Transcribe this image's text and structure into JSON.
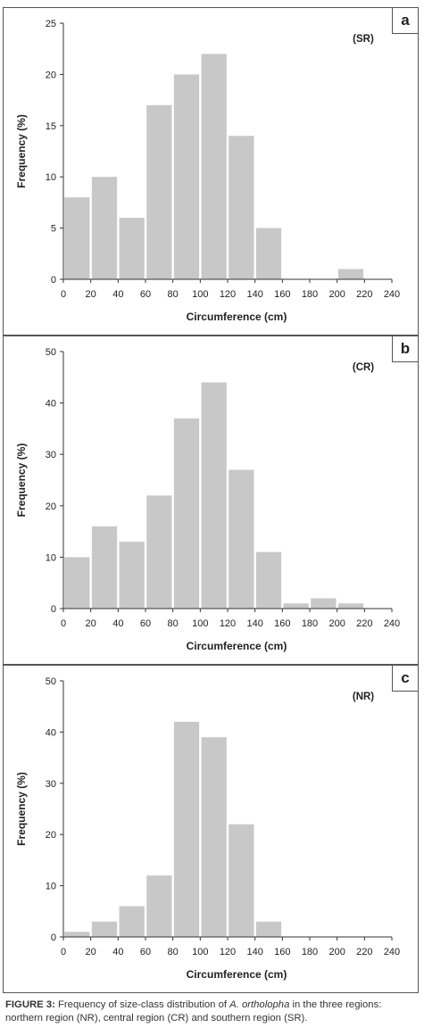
{
  "panels": [
    {
      "letter": "a",
      "chart_data": {
        "type": "bar",
        "region_label": "(SR)",
        "xlabel": "Circumference (cm)",
        "ylabel": "Frequency (%)",
        "xlim": [
          0,
          240
        ],
        "ylim": [
          0,
          25
        ],
        "xticks": [
          0,
          20,
          40,
          60,
          80,
          100,
          120,
          140,
          160,
          180,
          200,
          220,
          240
        ],
        "yticks": [
          0,
          5,
          10,
          15,
          20,
          25
        ],
        "bins": [
          [
            0,
            20
          ],
          [
            20,
            40
          ],
          [
            40,
            60
          ],
          [
            60,
            80
          ],
          [
            80,
            100
          ],
          [
            100,
            120
          ],
          [
            120,
            140
          ],
          [
            140,
            160
          ],
          [
            160,
            180
          ],
          [
            180,
            200
          ],
          [
            200,
            220
          ]
        ],
        "values": [
          8,
          10,
          6,
          17,
          20,
          22,
          14,
          5,
          0,
          0,
          1
        ],
        "bar_color": "#c8c8c8"
      }
    },
    {
      "letter": "b",
      "chart_data": {
        "type": "bar",
        "region_label": "(CR)",
        "xlabel": "Circumference (cm)",
        "ylabel": "Frequency (%)",
        "xlim": [
          0,
          240
        ],
        "ylim": [
          0,
          50
        ],
        "xticks": [
          0,
          20,
          40,
          60,
          80,
          100,
          120,
          140,
          160,
          180,
          200,
          220,
          240
        ],
        "yticks": [
          0,
          10,
          20,
          30,
          40,
          50
        ],
        "bins": [
          [
            0,
            20
          ],
          [
            20,
            40
          ],
          [
            40,
            60
          ],
          [
            60,
            80
          ],
          [
            80,
            100
          ],
          [
            100,
            120
          ],
          [
            120,
            140
          ],
          [
            140,
            160
          ],
          [
            160,
            180
          ],
          [
            180,
            200
          ],
          [
            200,
            220
          ]
        ],
        "values": [
          10,
          16,
          13,
          22,
          37,
          44,
          27,
          11,
          1,
          2,
          1
        ],
        "bar_color": "#c8c8c8"
      }
    },
    {
      "letter": "c",
      "chart_data": {
        "type": "bar",
        "region_label": "(NR)",
        "xlabel": "Circumference (cm)",
        "ylabel": "Frequency (%)",
        "xlim": [
          0,
          240
        ],
        "ylim": [
          0,
          50
        ],
        "xticks": [
          0,
          20,
          40,
          60,
          80,
          100,
          120,
          140,
          160,
          180,
          200,
          220,
          240
        ],
        "yticks": [
          0,
          10,
          20,
          30,
          40,
          50
        ],
        "bins": [
          [
            0,
            20
          ],
          [
            20,
            40
          ],
          [
            40,
            60
          ],
          [
            60,
            80
          ],
          [
            80,
            100
          ],
          [
            100,
            120
          ],
          [
            120,
            140
          ],
          [
            140,
            160
          ],
          [
            160,
            180
          ],
          [
            180,
            200
          ],
          [
            200,
            220
          ]
        ],
        "values": [
          1,
          3,
          6,
          12,
          42,
          39,
          22,
          3,
          0,
          0,
          0
        ],
        "bar_color": "#c8c8c8"
      }
    }
  ],
  "caption": {
    "label": "FIGURE 3:",
    "text_before": " Frequency of size-class distribution of ",
    "species": "A. ortholopha",
    "text_after": " in the three regions: northern region (NR), central region (CR) and southern region (SR)."
  }
}
